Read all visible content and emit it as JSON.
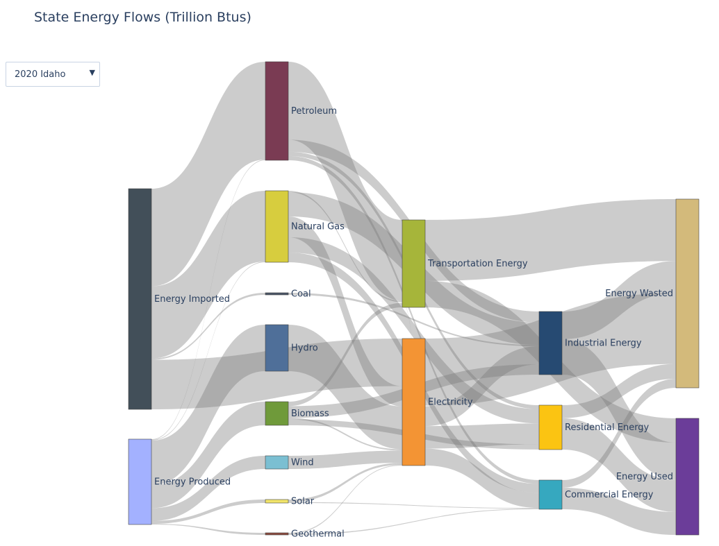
{
  "chart_data": {
    "type": "sankey",
    "title": "State Energy Flows (Trillion Btus)",
    "dropdown": {
      "selected": "2020 Idaho"
    },
    "nodes": [
      {
        "id": "imported",
        "label": "Energy Imported",
        "color": "#424f59"
      },
      {
        "id": "produced",
        "label": "Energy Produced",
        "color": "#a3b1ff"
      },
      {
        "id": "petroleum",
        "label": "Petroleum",
        "color": "#7a3b53"
      },
      {
        "id": "natgas",
        "label": "Natural Gas",
        "color": "#d7cd3e"
      },
      {
        "id": "coal",
        "label": "Coal",
        "color": "#4a5566"
      },
      {
        "id": "hydro",
        "label": "Hydro",
        "color": "#4f6f99"
      },
      {
        "id": "biomass",
        "label": "Biomass",
        "color": "#6f9a3a"
      },
      {
        "id": "wind",
        "label": "Wind",
        "color": "#7bbfd2"
      },
      {
        "id": "solar",
        "label": "Solar",
        "color": "#f1e46a"
      },
      {
        "id": "geothermal",
        "label": "Geothermal",
        "color": "#8b4a3f"
      },
      {
        "id": "transport",
        "label": "Transportation Energy",
        "color": "#a6b53a"
      },
      {
        "id": "electricity",
        "label": "Electricity",
        "color": "#f39434"
      },
      {
        "id": "industrial",
        "label": "Industrial Energy",
        "color": "#264a72"
      },
      {
        "id": "residential",
        "label": "Residential Energy",
        "color": "#fbc412"
      },
      {
        "id": "commercial",
        "label": "Commercial Energy",
        "color": "#36a8bf"
      },
      {
        "id": "wasted",
        "label": "Energy Wasted",
        "color": "#d3ba7b"
      },
      {
        "id": "used",
        "label": "Energy Used",
        "color": "#6b3d99"
      }
    ],
    "links": [
      {
        "source": "imported",
        "target": "petroleum",
        "value": 138
      },
      {
        "source": "imported",
        "target": "natgas",
        "value": 102
      },
      {
        "source": "imported",
        "target": "electricity",
        "value": 70
      },
      {
        "source": "imported",
        "target": "coal",
        "value": 2
      },
      {
        "source": "produced",
        "target": "hydro",
        "value": 63
      },
      {
        "source": "produced",
        "target": "biomass",
        "value": 32
      },
      {
        "source": "produced",
        "target": "wind",
        "value": 18
      },
      {
        "source": "produced",
        "target": "solar",
        "value": 4
      },
      {
        "source": "produced",
        "target": "geothermal",
        "value": 1
      },
      {
        "source": "produced",
        "target": "petroleum",
        "value": 1
      },
      {
        "source": "produced",
        "target": "natgas",
        "value": 1
      },
      {
        "source": "petroleum",
        "target": "transport",
        "value": 110
      },
      {
        "source": "petroleum",
        "target": "industrial",
        "value": 17
      },
      {
        "source": "petroleum",
        "target": "residential",
        "value": 6
      },
      {
        "source": "petroleum",
        "target": "commercial",
        "value": 6
      },
      {
        "source": "natgas",
        "target": "electricity",
        "value": 30
      },
      {
        "source": "natgas",
        "target": "industrial",
        "value": 35
      },
      {
        "source": "natgas",
        "target": "residential",
        "value": 22
      },
      {
        "source": "natgas",
        "target": "commercial",
        "value": 14
      },
      {
        "source": "natgas",
        "target": "transport",
        "value": 2
      },
      {
        "source": "coal",
        "target": "industrial",
        "value": 2
      },
      {
        "source": "hydro",
        "target": "electricity",
        "value": 63
      },
      {
        "source": "biomass",
        "target": "industrial",
        "value": 16
      },
      {
        "source": "biomass",
        "target": "residential",
        "value": 8
      },
      {
        "source": "biomass",
        "target": "transport",
        "value": 6
      },
      {
        "source": "biomass",
        "target": "electricity",
        "value": 2
      },
      {
        "source": "wind",
        "target": "electricity",
        "value": 18
      },
      {
        "source": "solar",
        "target": "electricity",
        "value": 3
      },
      {
        "source": "solar",
        "target": "commercial",
        "value": 1
      },
      {
        "source": "geothermal",
        "target": "electricity",
        "value": 1
      },
      {
        "source": "geothermal",
        "target": "commercial",
        "value": 1
      },
      {
        "source": "electricity",
        "target": "wasted",
        "value": 95
      },
      {
        "source": "electricity",
        "target": "industrial",
        "value": 28
      },
      {
        "source": "electricity",
        "target": "residential",
        "value": 32
      },
      {
        "source": "electricity",
        "target": "commercial",
        "value": 24
      },
      {
        "source": "electricity",
        "target": "transport",
        "value": 1
      },
      {
        "source": "transport",
        "target": "wasted",
        "value": 83
      },
      {
        "source": "transport",
        "target": "used",
        "value": 36
      },
      {
        "source": "industrial",
        "target": "wasted",
        "value": 43
      },
      {
        "source": "industrial",
        "target": "used",
        "value": 55
      },
      {
        "source": "residential",
        "target": "wasted",
        "value": 20
      },
      {
        "source": "residential",
        "target": "used",
        "value": 48
      },
      {
        "source": "commercial",
        "target": "wasted",
        "value": 12
      },
      {
        "source": "commercial",
        "target": "used",
        "value": 34
      }
    ]
  }
}
